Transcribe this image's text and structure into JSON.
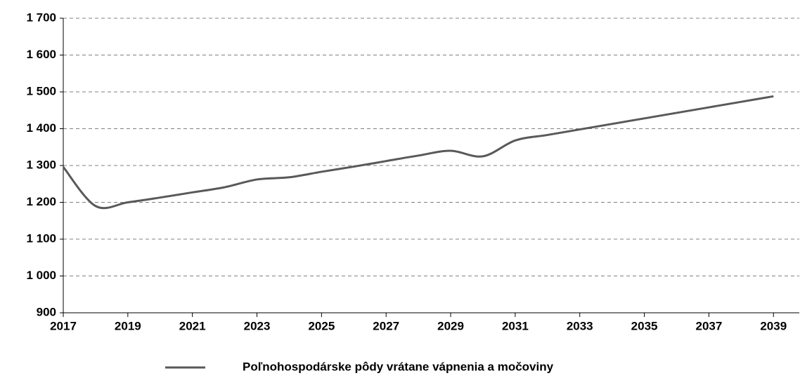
{
  "chart_data": {
    "type": "line",
    "x": [
      2017,
      2018,
      2019,
      2020,
      2021,
      2022,
      2023,
      2024,
      2025,
      2026,
      2027,
      2028,
      2029,
      2030,
      2031,
      2032,
      2033,
      2034,
      2035,
      2036,
      2037,
      2038,
      2039
    ],
    "series": [
      {
        "name": "Poľnohospodárske pôdy vrátane vápnenia a močoviny",
        "color": "#595959",
        "values": [
          1296,
          1190,
          1200,
          1213,
          1227,
          1241,
          1262,
          1268,
          1283,
          1297,
          1312,
          1327,
          1340,
          1325,
          1368,
          1383,
          1398,
          1413,
          1428,
          1443,
          1458,
          1473,
          1488
        ]
      }
    ],
    "xlim": [
      2017,
      2039.8
    ],
    "xticks": [
      2017,
      2019,
      2021,
      2023,
      2025,
      2027,
      2029,
      2031,
      2033,
      2035,
      2037,
      2039
    ],
    "ylim": [
      900,
      1700
    ],
    "yticks": [
      900,
      {
        "value": 1000,
        "label": "1 000"
      },
      {
        "value": 1100,
        "label": "1 100"
      },
      {
        "value": 1200,
        "label": "1 200"
      },
      {
        "value": 1300,
        "label": "1 300"
      },
      {
        "value": 1400,
        "label": "1 400"
      },
      {
        "value": 1500,
        "label": "1 500"
      },
      {
        "value": 1600,
        "label": "1 600"
      },
      {
        "value": 1700,
        "label": "1 700"
      }
    ],
    "grid": true
  }
}
